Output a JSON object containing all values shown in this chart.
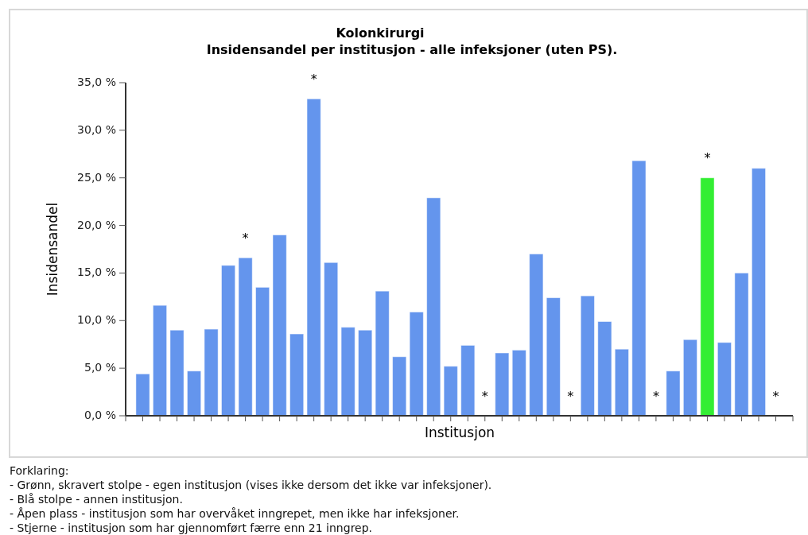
{
  "chart_data": {
    "type": "bar",
    "title": "Kolonkirurgi",
    "subtitle": "Insidensandel per institusjon - alle infeksjoner (uten PS).",
    "xlabel": "Institusjon",
    "ylabel": "Insidensandel",
    "categories": [
      null,
      null,
      null,
      null,
      null,
      null,
      null,
      null,
      null,
      null,
      null,
      null,
      null,
      null,
      null,
      null,
      null,
      null,
      null,
      null,
      null,
      null,
      null,
      null,
      null,
      null,
      null,
      null,
      null,
      null,
      null,
      null,
      null,
      null,
      null,
      null,
      null,
      null
    ],
    "values": [
      4.4,
      11.6,
      9.0,
      4.7,
      9.1,
      15.8,
      16.6,
      13.5,
      19.0,
      8.6,
      33.3,
      16.1,
      9.3,
      9.0,
      13.1,
      6.2,
      10.9,
      22.9,
      5.2,
      7.4,
      0,
      6.6,
      6.9,
      17.0,
      12.4,
      0,
      12.6,
      9.9,
      7.0,
      26.8,
      0,
      4.7,
      8.0,
      25.0,
      7.7,
      15.0,
      26.0,
      0
    ],
    "colors": [
      "#6495ed",
      "#6495ed",
      "#6495ed",
      "#6495ed",
      "#6495ed",
      "#6495ed",
      "#6495ed",
      "#6495ed",
      "#6495ed",
      "#6495ed",
      "#6495ed",
      "#6495ed",
      "#6495ed",
      "#6495ed",
      "#6495ed",
      "#6495ed",
      "#6495ed",
      "#6495ed",
      "#6495ed",
      "#6495ed",
      "#6495ed",
      "#6495ed",
      "#6495ed",
      "#6495ed",
      "#6495ed",
      "#6495ed",
      "#6495ed",
      "#6495ed",
      "#6495ed",
      "#6495ed",
      "#6495ed",
      "#6495ed",
      "#6495ed",
      "#33ee33",
      "#6495ed",
      "#6495ed",
      "#6495ed",
      "#6495ed"
    ],
    "value_labels": [
      null,
      null,
      null,
      null,
      null,
      null,
      "*",
      null,
      null,
      null,
      "*",
      null,
      null,
      null,
      null,
      null,
      null,
      null,
      null,
      null,
      "*",
      null,
      null,
      null,
      null,
      "*",
      null,
      null,
      null,
      null,
      "*",
      null,
      null,
      "*",
      null,
      null,
      null,
      "*"
    ],
    "ylim": [
      0,
      35
    ],
    "yticks": [
      {
        "value": 0,
        "label": "0,0 %"
      },
      {
        "value": 5,
        "label": "5,0 %"
      },
      {
        "value": 10,
        "label": "10,0 %"
      },
      {
        "value": 15,
        "label": "15,0 %"
      },
      {
        "value": 20,
        "label": "20,0 %"
      },
      {
        "value": 25,
        "label": "25,0 %"
      },
      {
        "value": 30,
        "label": "30,0 %"
      },
      {
        "value": 35,
        "label": "35,0 %"
      }
    ],
    "annotations": [
      "Forklaring:",
      "- Grønn, skravert stolpe - egen institusjon (vises ikke dersom det ikke var infeksjoner).",
      "- Blå stolpe - annen institusjon.",
      "- Åpen plass - institusjon som har overvåket inngrepet, men ikke har infeksjoner.",
      "- Stjerne - institusjon som har gjennomført færre enn 21 inngrep."
    ]
  }
}
